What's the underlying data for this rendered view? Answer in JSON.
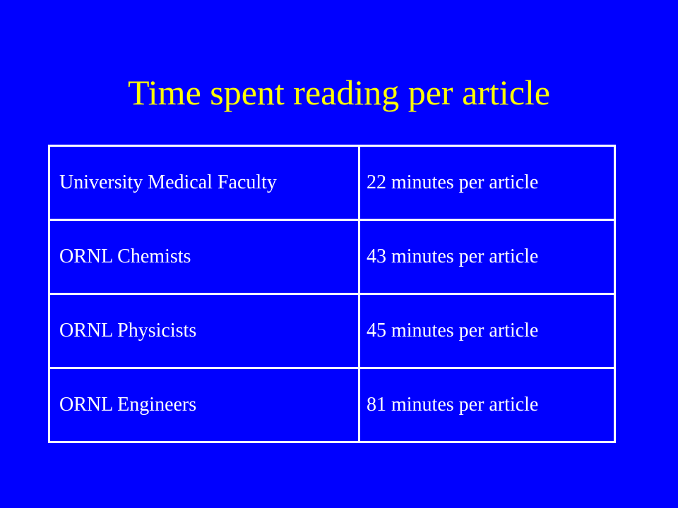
{
  "slide": {
    "title": "Time spent reading per article",
    "background_color": "#0000ff",
    "title_color": "#ffff00",
    "text_color": "#ffffff"
  },
  "table": {
    "rows": [
      {
        "group": "University Medical Faculty",
        "time": "22 minutes per article"
      },
      {
        "group": "ORNL Chemists",
        "time": "43 minutes per article"
      },
      {
        "group": "ORNL Physicists",
        "time": "45 minutes per article"
      },
      {
        "group": "ORNL Engineers",
        "time": "81 minutes per article"
      }
    ]
  }
}
